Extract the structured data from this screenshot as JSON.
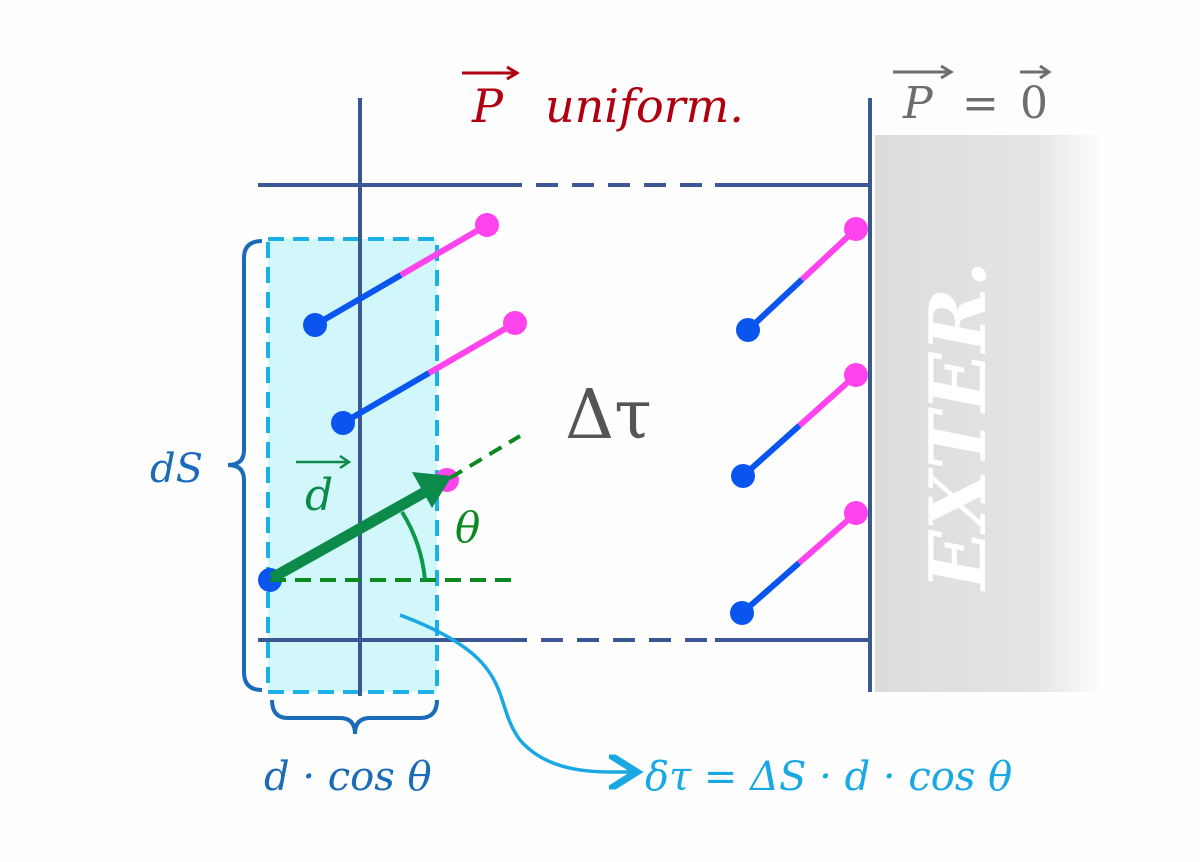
{
  "title": {
    "symbol": "P",
    "text": "uniform.",
    "color": "#b00010"
  },
  "exterior_label": {
    "symbol": "P",
    "equals": "=",
    "zero": "0",
    "color": "#6e6e6e"
  },
  "exterior_text": "EXTER.",
  "volume_label": "Δτ",
  "ds_label": "dS",
  "width_label": "d · cos θ",
  "dipole_label": "d",
  "angle_label": "θ",
  "formula": "δτ = ΔS · d · cos θ",
  "colors": {
    "frame": "#3b5894",
    "slab_fill": "#d2f7fb",
    "slab_border": "#1cb0e8",
    "brace": "#1a6cb8",
    "dipole_negative": "#0a55f0",
    "dipole_positive": "#ff44ee",
    "dipole_vector": "#0c8a4a",
    "formula": "#18a8e4",
    "volume_label": "#555555"
  }
}
